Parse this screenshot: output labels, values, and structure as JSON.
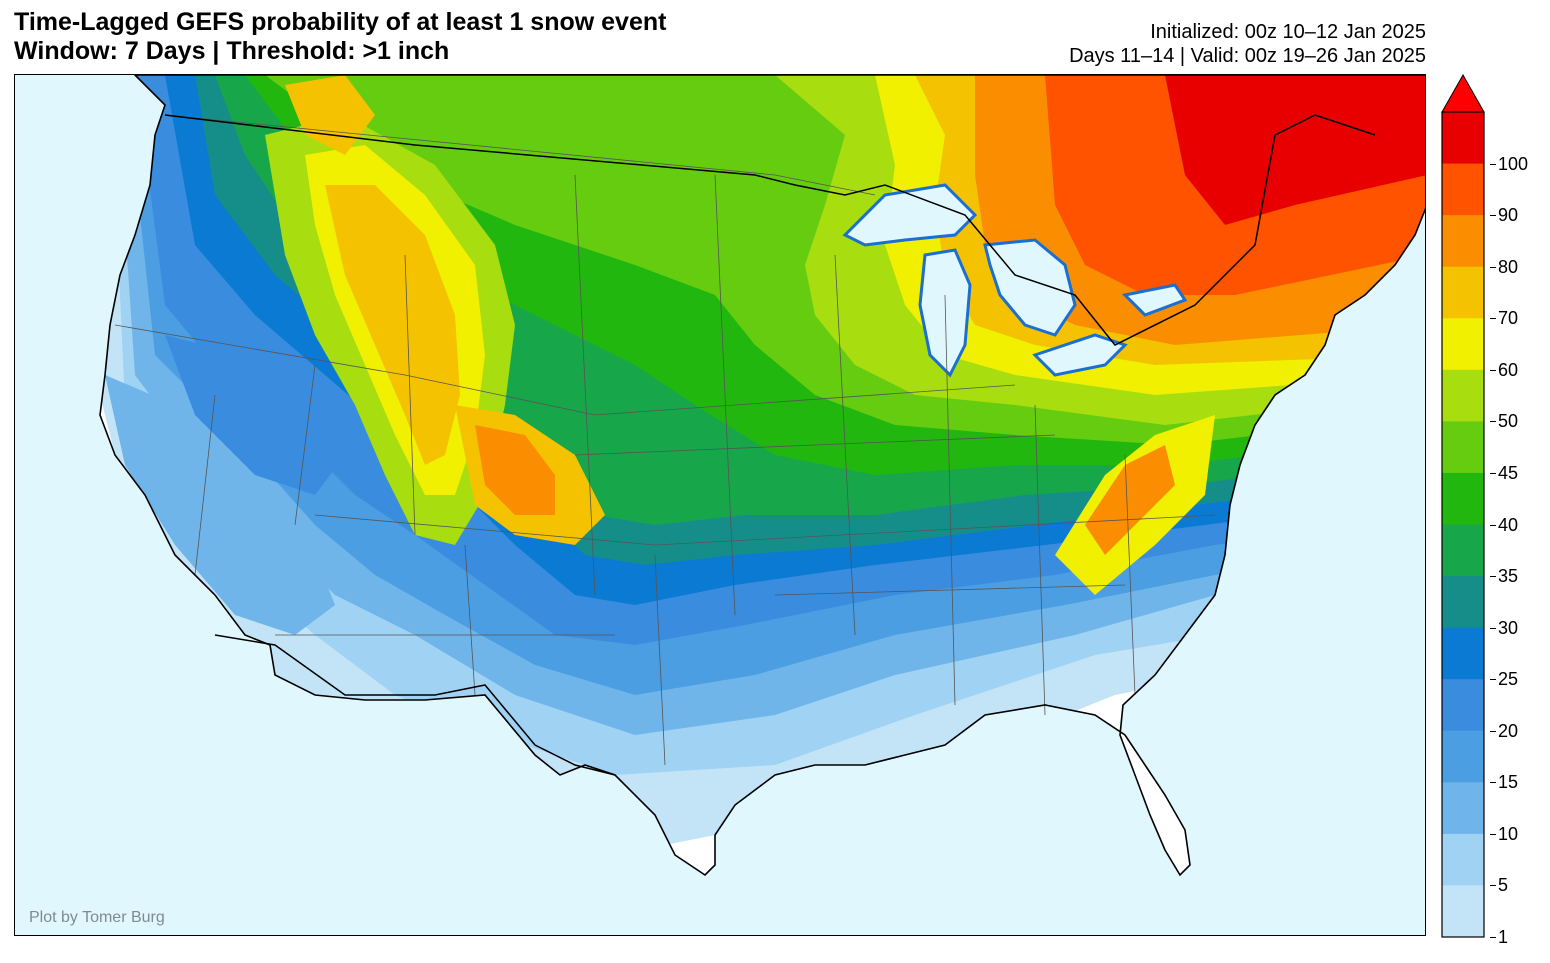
{
  "header": {
    "title_line1": "Time-Lagged GEFS probability of at least 1 snow event",
    "title_line2": "Window: 7 Days | Threshold: >1 inch",
    "initialized": "Initialized: 00z 10–12 Jan 2025",
    "valid": "Days 11–14 | Valid: 00z 19–26 Jan 2025"
  },
  "map": {
    "credit": "Plot by Tomer Burg",
    "ocean_color": "#e1f7fe",
    "land_color": "#ffffff",
    "region": "Contiguous United States"
  },
  "colorbar": {
    "levels": [
      "1",
      "5",
      "10",
      "15",
      "20",
      "25",
      "30",
      "35",
      "40",
      "45",
      "50",
      "60",
      "70",
      "80",
      "90",
      "100"
    ],
    "colors": [
      "#c3e4f7",
      "#9fd2f3",
      "#6fb5ea",
      "#4c9ee3",
      "#3a8cde",
      "#0a7ad2",
      "#158e8a",
      "#18a64a",
      "#22b70f",
      "#66cc0f",
      "#a8dd0f",
      "#f0f000",
      "#f5c200",
      "#fa8e00",
      "#ff5300",
      "#e80000"
    ]
  }
}
